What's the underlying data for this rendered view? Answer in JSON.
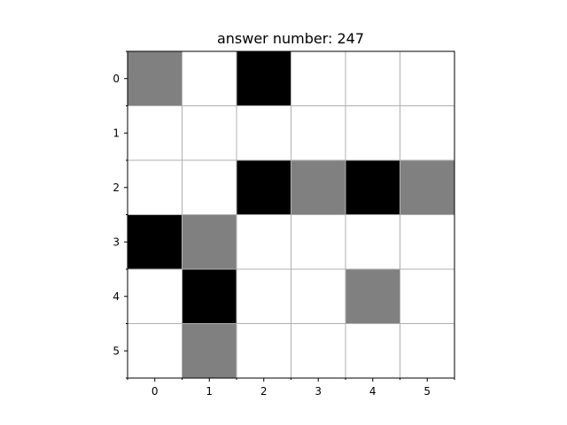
{
  "chart_data": {
    "type": "heatmap",
    "title": "answer number: 247",
    "x_ticks": [
      "0",
      "1",
      "2",
      "3",
      "4",
      "5"
    ],
    "y_ticks": [
      "0",
      "1",
      "2",
      "3",
      "4",
      "5"
    ],
    "grid": true,
    "colors": {
      "0": "#ffffff",
      "1": "#808080",
      "2": "#000000"
    },
    "values": [
      [
        1,
        0,
        2,
        0,
        0,
        0
      ],
      [
        0,
        0,
        0,
        0,
        0,
        0
      ],
      [
        0,
        0,
        2,
        1,
        2,
        1
      ],
      [
        2,
        1,
        0,
        0,
        0,
        0
      ],
      [
        0,
        2,
        0,
        0,
        1,
        0
      ],
      [
        0,
        1,
        0,
        0,
        0,
        0
      ]
    ]
  }
}
